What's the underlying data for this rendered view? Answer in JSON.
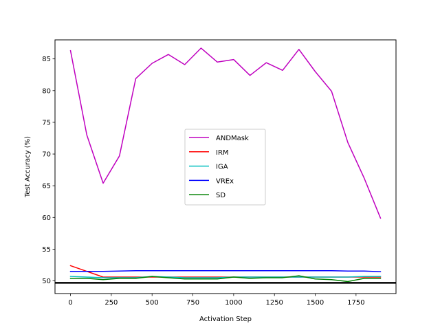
{
  "chart_data": {
    "type": "line",
    "xlabel": "Activation Step",
    "ylabel": "Test Accuracy (%)",
    "xlim": [
      -95,
      1995
    ],
    "ylim": [
      48.0,
      88.0
    ],
    "xticks": [
      0,
      250,
      500,
      750,
      1000,
      1250,
      1500,
      1750
    ],
    "xtick_labels": [
      "0",
      "250",
      "500",
      "750",
      "1000",
      "1250",
      "1500",
      "1750"
    ],
    "yticks": [
      50,
      55,
      60,
      65,
      70,
      75,
      80,
      85
    ],
    "ytick_labels": [
      "50",
      "55",
      "60",
      "65",
      "70",
      "75",
      "80",
      "85"
    ],
    "grid": false,
    "legend_position": "center",
    "x": [
      0,
      100,
      200,
      300,
      400,
      500,
      600,
      700,
      800,
      900,
      1000,
      1100,
      1200,
      1300,
      1400,
      1500,
      1600,
      1700,
      1800,
      1900
    ],
    "series": [
      {
        "name": "ANDMask",
        "color": "#bf00bf",
        "values": [
          86.3,
          73.0,
          65.4,
          69.7,
          81.9,
          84.3,
          85.7,
          84.1,
          86.7,
          84.5,
          84.9,
          82.4,
          84.4,
          83.2,
          86.5,
          83.0,
          79.9,
          71.8,
          66.2,
          59.9
        ]
      },
      {
        "name": "IRM",
        "color": "#ff0000",
        "values": [
          52.4,
          51.5,
          50.6,
          50.6,
          50.6,
          50.6,
          50.6,
          50.6,
          50.6,
          50.6,
          50.6,
          50.6,
          50.6,
          50.6,
          50.6,
          50.6,
          50.6,
          50.6,
          50.6,
          50.6
        ]
      },
      {
        "name": "IGA",
        "color": "#00bfbf",
        "values": [
          50.7,
          50.6,
          50.5,
          50.5,
          50.5,
          50.7,
          50.6,
          50.5,
          50.5,
          50.5,
          50.6,
          50.6,
          50.6,
          50.6,
          50.6,
          50.6,
          50.6,
          50.6,
          50.7,
          50.7
        ]
      },
      {
        "name": "VREx",
        "color": "#0000ff",
        "values": [
          51.5,
          51.5,
          51.5,
          51.55,
          51.6,
          51.6,
          51.6,
          51.6,
          51.6,
          51.6,
          51.6,
          51.6,
          51.6,
          51.6,
          51.6,
          51.6,
          51.6,
          51.55,
          51.55,
          51.45
        ]
      },
      {
        "name": "SD",
        "color": "#008000",
        "values": [
          50.4,
          50.4,
          50.2,
          50.4,
          50.4,
          50.7,
          50.5,
          50.3,
          50.3,
          50.3,
          50.6,
          50.4,
          50.5,
          50.5,
          50.8,
          50.3,
          50.2,
          49.9,
          50.4,
          50.4
        ]
      }
    ],
    "reference_line": {
      "y": 49.7,
      "color": "#000000"
    }
  }
}
